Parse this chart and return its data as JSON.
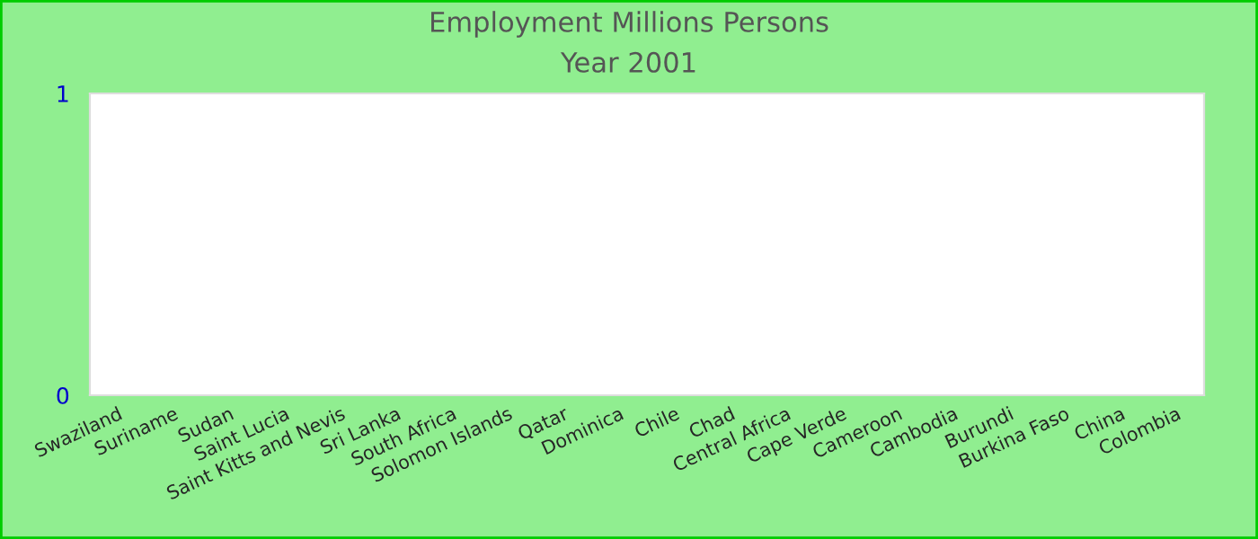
{
  "chart_data": {
    "type": "bar",
    "title": "Employment Millions Persons",
    "subtitle": "Year 2001",
    "categories": [
      "Swaziland",
      "Suriname",
      "Sudan",
      "Saint Lucia",
      "Saint Kitts and Nevis",
      "Sri Lanka",
      "South Africa",
      "Solomon Islands",
      "Qatar",
      "Dominica",
      "Chile",
      "Chad",
      "Central Africa",
      "Cape Verde",
      "Cameroon",
      "Cambodia",
      "Burundi",
      "Burkina Faso",
      "China",
      "Colombia"
    ],
    "values": [
      0,
      0,
      0,
      0,
      0,
      0,
      0,
      0,
      0,
      0,
      0,
      0,
      0,
      0,
      0,
      0,
      0,
      0,
      0,
      0
    ],
    "ylim": [
      0,
      1
    ],
    "yticks": [
      0,
      1
    ],
    "grid": false,
    "legend": false
  }
}
